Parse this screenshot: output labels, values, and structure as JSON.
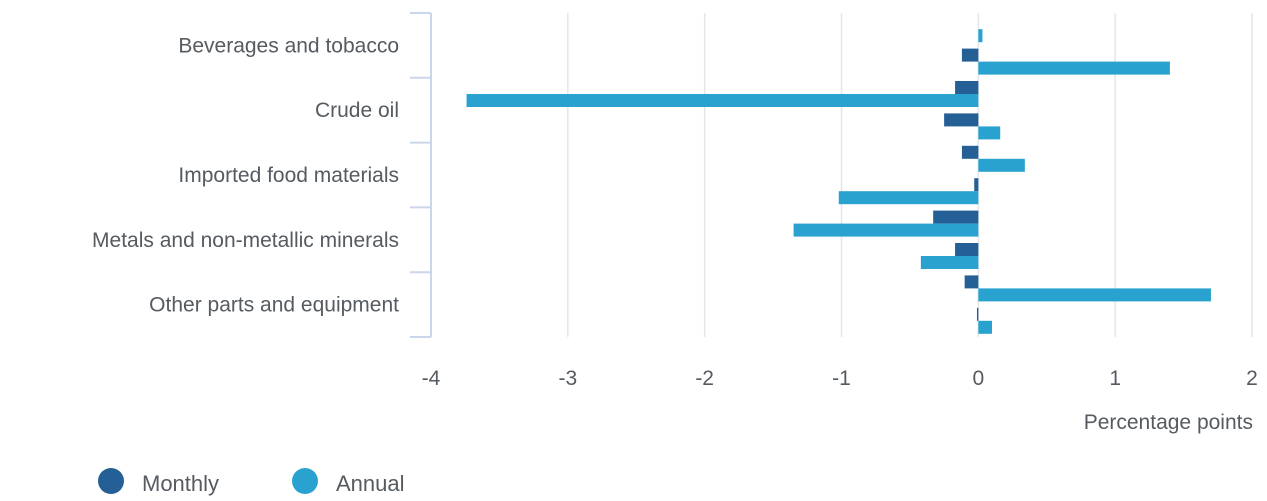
{
  "chart_data": {
    "type": "bar",
    "orientation": "horizontal",
    "categories": [
      "Beverages and tobacco",
      "",
      "Crude oil",
      "",
      "Imported food materials",
      "",
      "Metals and non-metallic minerals",
      "",
      "Other parts and equipment",
      ""
    ],
    "series": [
      {
        "name": "Monthly",
        "color": "#245f95",
        "values": [
          0.0,
          -0.12,
          -0.17,
          -0.25,
          -0.12,
          -0.03,
          -0.33,
          -0.17,
          -0.1,
          -0.01
        ]
      },
      {
        "name": "Annual",
        "color": "#2aa2cf",
        "values": [
          0.03,
          1.4,
          -3.74,
          0.16,
          0.34,
          -1.02,
          -1.35,
          -0.42,
          1.7,
          0.1
        ]
      }
    ],
    "xlabel": "Percentage points",
    "xlim": [
      -4,
      2
    ],
    "xticks": [
      -4,
      -3,
      -2,
      -1,
      0,
      1,
      2
    ],
    "grid": "vertical",
    "legend": "bottom-left"
  }
}
